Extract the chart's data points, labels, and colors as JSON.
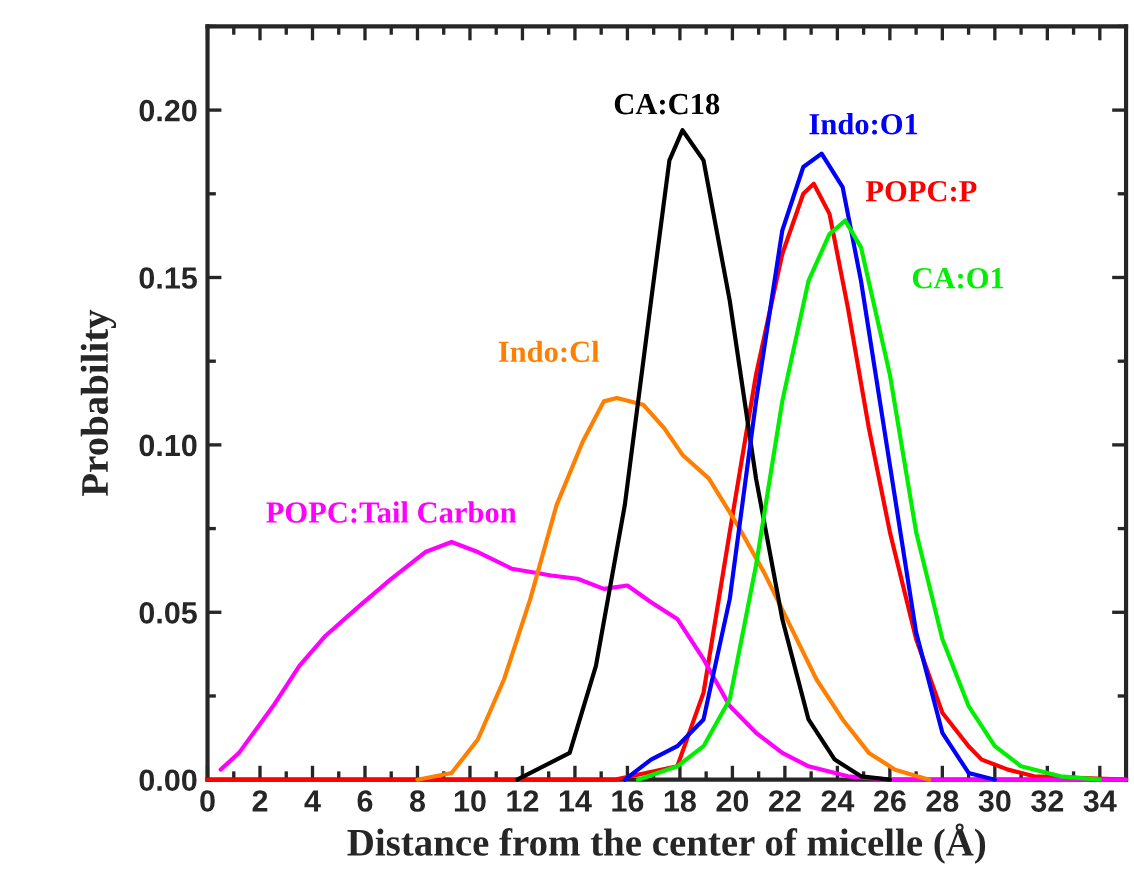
{
  "chart_data": {
    "type": "line",
    "xlabel": "Distance from the center of micelle (Å)",
    "ylabel": "Probability",
    "xlim": [
      0,
      35
    ],
    "ylim": [
      0,
      0.225
    ],
    "xticks": [
      0,
      2,
      4,
      6,
      8,
      10,
      12,
      14,
      16,
      18,
      20,
      22,
      24,
      26,
      28,
      30,
      32,
      34
    ],
    "yticks": [
      {
        "value": 0,
        "label": "0.00"
      },
      {
        "value": 0.05,
        "label": "0.05"
      },
      {
        "value": 0.1,
        "label": "0.10"
      },
      {
        "value": 0.15,
        "label": "0.15"
      },
      {
        "value": 0.2,
        "label": "0.20"
      }
    ],
    "grid": false,
    "legend": false,
    "series": [
      {
        "name": "POPC:P",
        "color": "#ff0000",
        "x": [
          0,
          15.5,
          17.9,
          18.9,
          19.9,
          20.9,
          21.9,
          22.7,
          23.1,
          23.7,
          24.4,
          25.2,
          26,
          27,
          28,
          29,
          29.5,
          30.5,
          31.5,
          35
        ],
        "values": [
          0,
          0,
          0.004,
          0.026,
          0.074,
          0.121,
          0.157,
          0.175,
          0.178,
          0.169,
          0.141,
          0.105,
          0.074,
          0.042,
          0.02,
          0.01,
          0.006,
          0.003,
          0.001,
          0
        ]
      },
      {
        "name": "POPC:Tail Carbon",
        "color": "#ff00ff",
        "x": [
          0.5,
          1.2,
          2.5,
          3.5,
          4.5,
          5.8,
          7,
          8.3,
          9.3,
          10.3,
          11.6,
          13.1,
          14.1,
          15.1,
          16,
          16.9,
          17.9,
          18.9,
          19.9,
          20.9,
          21.9,
          22.9,
          24.4,
          26,
          35
        ],
        "values": [
          0.003,
          0.008,
          0.022,
          0.034,
          0.043,
          0.052,
          0.06,
          0.068,
          0.071,
          0.068,
          0.063,
          0.061,
          0.06,
          0.057,
          0.058,
          0.053,
          0.048,
          0.036,
          0.022,
          0.014,
          0.008,
          0.004,
          0.001,
          0,
          0
        ]
      },
      {
        "name": "Indo:Cl",
        "color": "#ff8000",
        "x": [
          8,
          9.3,
          10.3,
          11.3,
          12.3,
          13.3,
          14.3,
          15.1,
          15.6,
          16.6,
          17.4,
          18.1,
          19.1,
          20.2,
          21.2,
          22.2,
          23.2,
          24.2,
          25.2,
          26.2,
          27.5
        ],
        "values": [
          0,
          0.002,
          0.012,
          0.03,
          0.054,
          0.082,
          0.101,
          0.113,
          0.114,
          0.112,
          0.105,
          0.097,
          0.09,
          0.076,
          0.062,
          0.046,
          0.03,
          0.018,
          0.008,
          0.003,
          0
        ]
      },
      {
        "name": "CA:C18",
        "color": "#000000",
        "x": [
          11.8,
          13.8,
          14.8,
          15.9,
          16.9,
          17.6,
          18.1,
          18.9,
          19.9,
          20.9,
          21.9,
          22.9,
          23.9,
          24.9,
          26
        ],
        "values": [
          0,
          0.008,
          0.034,
          0.082,
          0.143,
          0.185,
          0.194,
          0.185,
          0.143,
          0.09,
          0.048,
          0.018,
          0.006,
          0.001,
          0
        ]
      },
      {
        "name": "Indo:O1",
        "color": "#0000ff",
        "x": [
          15.9,
          16.9,
          17.9,
          18.9,
          19.9,
          20.9,
          21.9,
          22.7,
          23.4,
          24.2,
          24.9,
          26,
          27,
          28,
          29,
          30
        ],
        "values": [
          0,
          0.006,
          0.01,
          0.018,
          0.054,
          0.113,
          0.164,
          0.183,
          0.187,
          0.177,
          0.149,
          0.094,
          0.044,
          0.014,
          0.002,
          0
        ]
      },
      {
        "name": "CA:O1",
        "color": "#00ee00",
        "x": [
          16.4,
          17.9,
          18.9,
          19.9,
          20.9,
          21.9,
          22.9,
          23.7,
          24.3,
          24.9,
          26,
          27,
          28,
          29,
          30,
          31,
          32.5,
          34
        ],
        "values": [
          0,
          0.004,
          0.01,
          0.024,
          0.064,
          0.113,
          0.149,
          0.163,
          0.167,
          0.159,
          0.121,
          0.074,
          0.042,
          0.022,
          0.01,
          0.004,
          0.001,
          0
        ]
      }
    ]
  }
}
